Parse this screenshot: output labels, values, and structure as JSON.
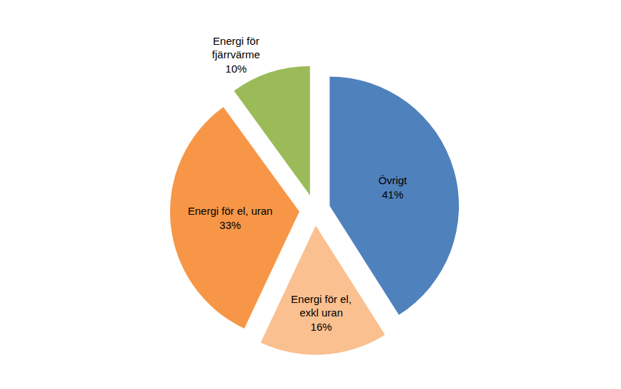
{
  "chart_data": {
    "type": "pie",
    "categories": [
      "Övrigt",
      "Energi för el, exkl uran",
      "Energi för el, uran",
      "Energi för fjärrvärme"
    ],
    "values": [
      41,
      16,
      33,
      10
    ],
    "value_labels": [
      "41%",
      "16%",
      "33%",
      "10%"
    ],
    "colors": [
      "#4F81BD",
      "#FAC090",
      "#F79646",
      "#9BBB59"
    ],
    "data_labels": true
  }
}
